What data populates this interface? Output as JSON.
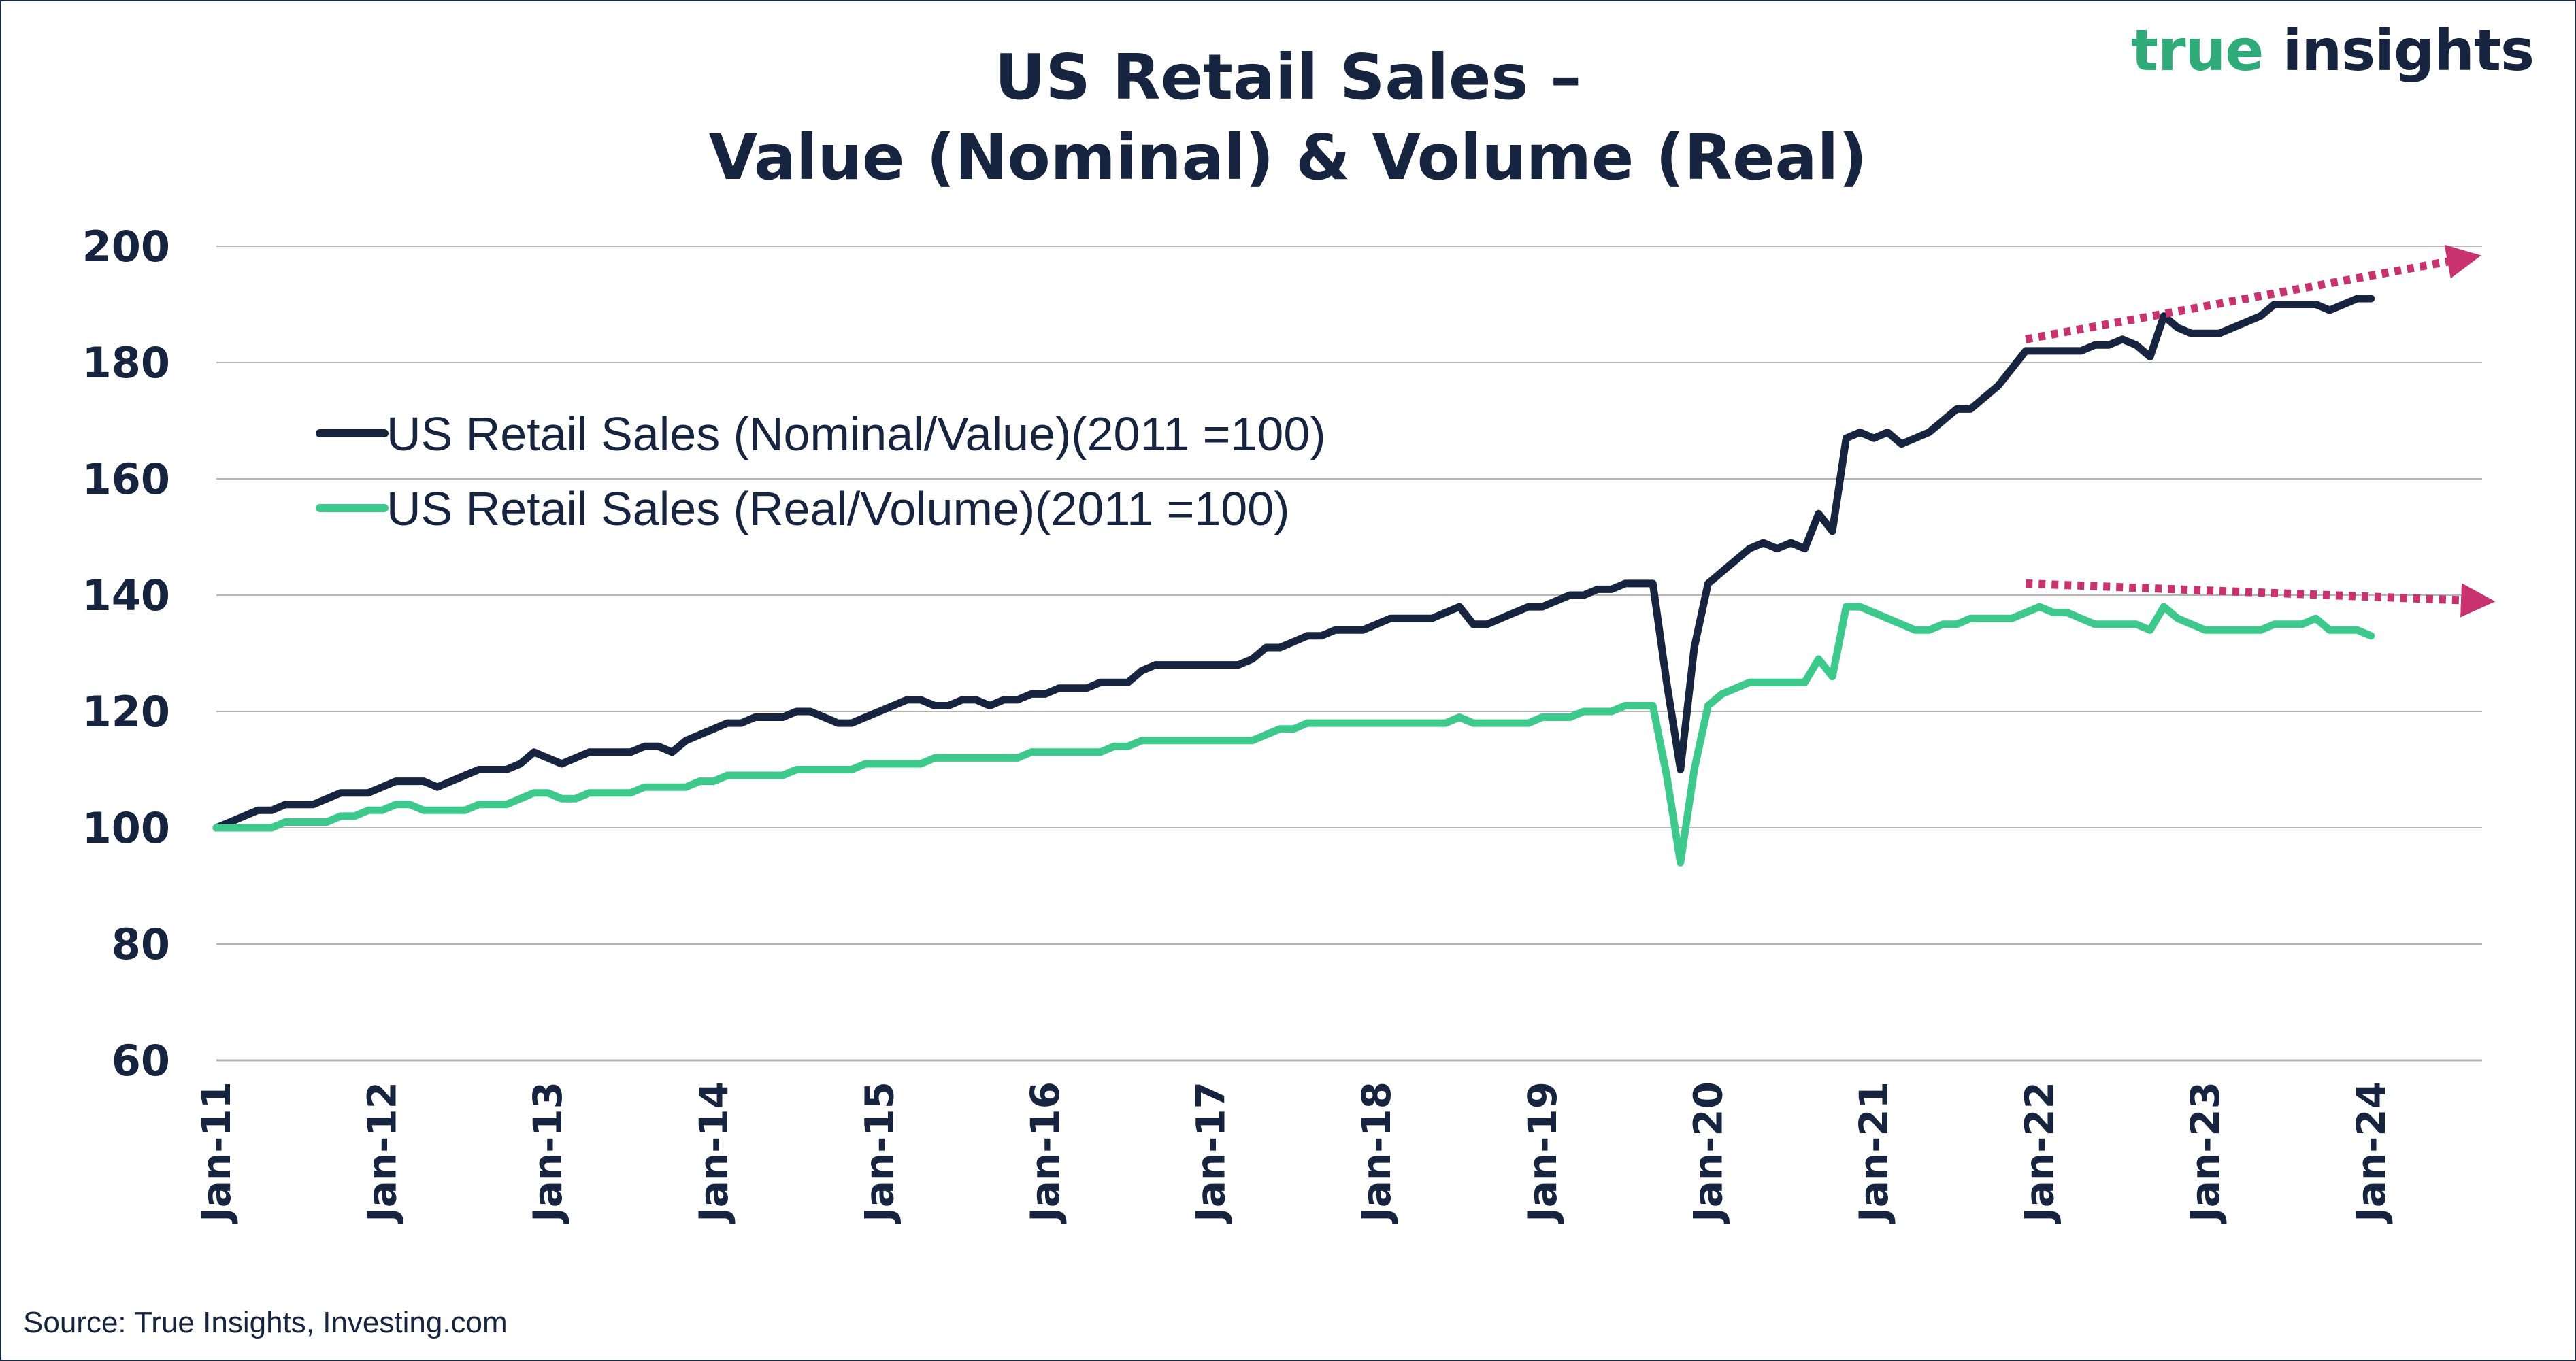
{
  "logo": {
    "word1": "true",
    "word2": "insights"
  },
  "source": "Source: True Insights, Investing.com",
  "colors": {
    "nominal": "#17243f",
    "real": "#3cc98b",
    "arrow": "#c8336f",
    "grid": "#b5b5b5",
    "text": "#17243f"
  },
  "chart_data": {
    "type": "line",
    "title": [
      "US Retail Sales –",
      "Value (Nominal) & Volume (Real)"
    ],
    "xlabel": "",
    "ylabel": "",
    "ylim": [
      60,
      200
    ],
    "yticks": [
      200,
      180,
      160,
      140,
      120,
      100,
      80,
      60
    ],
    "x_start": "Jan-11",
    "x_ticks": [
      "Jan-11",
      "Jan-12",
      "Jan-13",
      "Jan-14",
      "Jan-15",
      "Jan-16",
      "Jan-17",
      "Jan-18",
      "Jan-19",
      "Jan-20",
      "Jan-21",
      "Jan-22",
      "Jan-23",
      "Jan-24"
    ],
    "grid": true,
    "legend_position": "upper-left",
    "series": [
      {
        "name": "US Retail Sales (Nominal/Value)(2011 =100)",
        "values": [
          100,
          101,
          102,
          103,
          103,
          104,
          104,
          104,
          105,
          106,
          106,
          106,
          107,
          108,
          108,
          108,
          107,
          108,
          109,
          110,
          110,
          110,
          111,
          113,
          112,
          111,
          112,
          113,
          113,
          113,
          113,
          114,
          114,
          113,
          115,
          116,
          117,
          118,
          118,
          119,
          119,
          119,
          120,
          120,
          119,
          118,
          118,
          119,
          120,
          121,
          122,
          122,
          121,
          121,
          122,
          122,
          121,
          122,
          122,
          123,
          123,
          124,
          124,
          124,
          125,
          125,
          125,
          127,
          128,
          128,
          128,
          128,
          128,
          128,
          128,
          129,
          131,
          131,
          132,
          133,
          133,
          134,
          134,
          134,
          135,
          136,
          136,
          136,
          136,
          137,
          138,
          135,
          135,
          136,
          137,
          138,
          138,
          139,
          140,
          140,
          141,
          141,
          142,
          142,
          142,
          125,
          110,
          131,
          142,
          144,
          146,
          148,
          149,
          148,
          149,
          148,
          154,
          151,
          167,
          168,
          167,
          168,
          166,
          167,
          168,
          170,
          172,
          172,
          174,
          176,
          179,
          182,
          182,
          182,
          182,
          182,
          183,
          183,
          184,
          183,
          181,
          188,
          186,
          185,
          185,
          185,
          186,
          187,
          188,
          190,
          190,
          190,
          190,
          189,
          190,
          191,
          191
        ]
      },
      {
        "name": "US Retail Sales (Real/Volume)(2011 =100)",
        "values": [
          100,
          100,
          100,
          100,
          100,
          101,
          101,
          101,
          101,
          102,
          102,
          103,
          103,
          104,
          104,
          103,
          103,
          103,
          103,
          104,
          104,
          104,
          105,
          106,
          106,
          105,
          105,
          106,
          106,
          106,
          106,
          107,
          107,
          107,
          107,
          108,
          108,
          109,
          109,
          109,
          109,
          109,
          110,
          110,
          110,
          110,
          110,
          111,
          111,
          111,
          111,
          111,
          112,
          112,
          112,
          112,
          112,
          112,
          112,
          113,
          113,
          113,
          113,
          113,
          113,
          114,
          114,
          115,
          115,
          115,
          115,
          115,
          115,
          115,
          115,
          115,
          116,
          117,
          117,
          118,
          118,
          118,
          118,
          118,
          118,
          118,
          118,
          118,
          118,
          118,
          119,
          118,
          118,
          118,
          118,
          118,
          119,
          119,
          119,
          120,
          120,
          120,
          121,
          121,
          121,
          109,
          94,
          110,
          121,
          123,
          124,
          125,
          125,
          125,
          125,
          125,
          129,
          126,
          138,
          138,
          137,
          136,
          135,
          134,
          134,
          135,
          135,
          136,
          136,
          136,
          136,
          137,
          138,
          137,
          137,
          136,
          135,
          135,
          135,
          135,
          134,
          138,
          136,
          135,
          134,
          134,
          134,
          134,
          134,
          135,
          135,
          135,
          136,
          134,
          134,
          134,
          133
        ]
      }
    ],
    "trend_arrows": [
      {
        "series": "nominal",
        "from": {
          "month_index": 131,
          "value": 184
        },
        "to": {
          "month_index": 163,
          "value": 198
        }
      },
      {
        "series": "real",
        "from": {
          "month_index": 131,
          "value": 142
        },
        "to": {
          "month_index": 164,
          "value": 139
        }
      }
    ]
  }
}
